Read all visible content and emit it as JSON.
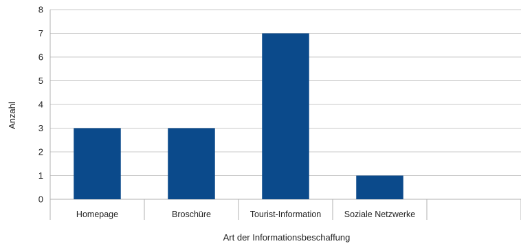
{
  "chart_data": {
    "type": "bar",
    "categories": [
      "Homepage",
      "Broschüre",
      "Tourist-Information",
      "Soziale Netzwerke"
    ],
    "values": [
      3,
      3,
      7,
      1
    ],
    "title": "",
    "xlabel": "Art der Informationsbeschaffung",
    "ylabel": "Anzahl",
    "ylim": [
      0,
      8
    ],
    "yticks": [
      0,
      1,
      2,
      3,
      4,
      5,
      6,
      7,
      8
    ],
    "slot_count": 5,
    "grid": true,
    "bar_color": "#0b4a8b"
  }
}
